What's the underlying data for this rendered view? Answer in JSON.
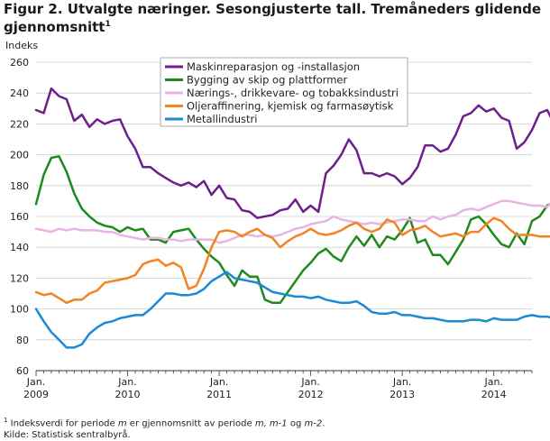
{
  "title_line1": "Figur 2. Utvalgte næringer. Sesongjusterte tall. Tremåneders glidende",
  "title_line2": "gjennomsnitt",
  "title_sup": "1",
  "footnote": {
    "sup": "1",
    "pre": " Indeksverdi for periode ",
    "m1": "m",
    "mid": " er gjennomsnitt av periode ",
    "m2": "m, m-1",
    "og": " og ",
    "m3": "m-2",
    "end": ".",
    "source": "Kilde: Statistisk sentralbyrå."
  },
  "chart_data": {
    "type": "line",
    "ylabel": "Indeks",
    "ylim": [
      60,
      260
    ],
    "yticks": [
      60,
      80,
      100,
      120,
      140,
      160,
      180,
      200,
      220,
      240,
      260
    ],
    "grid": true,
    "legend_position": "top-center",
    "x_start": "2009-01",
    "x_end": "2014-06",
    "x_tick_labels": [
      {
        "label": "Jan.",
        "year": "2009",
        "x": "2009-01"
      },
      {
        "label": "Jan.",
        "year": "2010",
        "x": "2010-01"
      },
      {
        "label": "Jan.",
        "year": "2011",
        "x": "2011-01"
      },
      {
        "label": "Jan.",
        "year": "2012",
        "x": "2012-01"
      },
      {
        "label": "Jan.",
        "year": "2013",
        "x": "2013-01"
      },
      {
        "label": "Jan.",
        "year": "2014",
        "x": "2014-01"
      }
    ],
    "series": [
      {
        "name": "Maskinreparasjon og -installasjon",
        "color": "#6e1f8a",
        "values": [
          229,
          227,
          243,
          238,
          236,
          222,
          226,
          218,
          223,
          220,
          222,
          223,
          212,
          204,
          192,
          192,
          188,
          185,
          182,
          180,
          182,
          179,
          183,
          174,
          180,
          172,
          171,
          164,
          163,
          159,
          160,
          161,
          164,
          165,
          171,
          163,
          167,
          163,
          188,
          193,
          200,
          210,
          203,
          188,
          188,
          186,
          188,
          186,
          181,
          185,
          192,
          206,
          206,
          202,
          204,
          213,
          225,
          227,
          232,
          228,
          230,
          224,
          222,
          204,
          208,
          216,
          227,
          229,
          219,
          224
        ]
      },
      {
        "name": "Bygging av skip og plattformer",
        "color": "#1e8a1e",
        "values": [
          168,
          187,
          198,
          199,
          189,
          175,
          165,
          160,
          156,
          154,
          153,
          150,
          153,
          151,
          152,
          145,
          145,
          143,
          150,
          151,
          152,
          145,
          139,
          134,
          130,
          122,
          115,
          125,
          121,
          121,
          106,
          104,
          104,
          111,
          118,
          125,
          130,
          136,
          139,
          134,
          131,
          140,
          147,
          141,
          148,
          140,
          147,
          145,
          151,
          159,
          143,
          145,
          135,
          135,
          129,
          137,
          145,
          158,
          160,
          155,
          148,
          142,
          140,
          149,
          142,
          157,
          160,
          167,
          170,
          163
        ]
      },
      {
        "name": "Nærings-, drikkevare- og tobakksindustri",
        "color": "#e8b4e4",
        "values": [
          152,
          151,
          150,
          152,
          151,
          152,
          151,
          151,
          151,
          150,
          150,
          148,
          147,
          146,
          145,
          146,
          146,
          145,
          145,
          144,
          145,
          145,
          145,
          145,
          143,
          144,
          146,
          148,
          148,
          147,
          148,
          147,
          148,
          150,
          152,
          153,
          155,
          156,
          157,
          160,
          158,
          157,
          156,
          155,
          156,
          155,
          156,
          157,
          158,
          158,
          157,
          157,
          160,
          158,
          160,
          161,
          164,
          165,
          164,
          166,
          168,
          170,
          170,
          169,
          168,
          167,
          167,
          166,
          172,
          174
        ]
      },
      {
        "name": "Oljeraffinering, kjemisk og farmasøytisk",
        "color": "#f58220",
        "values": [
          111,
          109,
          110,
          107,
          104,
          106,
          106,
          110,
          112,
          117,
          118,
          119,
          120,
          122,
          129,
          131,
          132,
          128,
          130,
          127,
          113,
          115,
          126,
          140,
          150,
          151,
          150,
          147,
          150,
          152,
          148,
          146,
          140,
          144,
          147,
          149,
          152,
          149,
          148,
          149,
          151,
          154,
          156,
          152,
          150,
          152,
          158,
          156,
          148,
          151,
          152,
          154,
          150,
          147,
          148,
          149,
          147,
          150,
          150,
          155,
          159,
          157,
          152,
          148,
          148,
          148,
          147,
          147,
          147,
          147
        ]
      },
      {
        "name": "Metallindustri",
        "color": "#1a8ad4",
        "values": [
          100,
          92,
          85,
          80,
          75,
          75,
          77,
          84,
          88,
          91,
          92,
          94,
          95,
          96,
          96,
          100,
          105,
          110,
          110,
          109,
          109,
          110,
          113,
          118,
          121,
          124,
          120,
          119,
          118,
          117,
          114,
          111,
          110,
          109,
          108,
          108,
          107,
          108,
          106,
          105,
          104,
          104,
          105,
          102,
          98,
          97,
          97,
          98,
          96,
          96,
          95,
          94,
          94,
          93,
          92,
          92,
          92,
          93,
          93,
          92,
          94,
          93,
          93,
          93,
          95,
          96,
          95,
          95,
          94,
          93
        ]
      }
    ]
  }
}
